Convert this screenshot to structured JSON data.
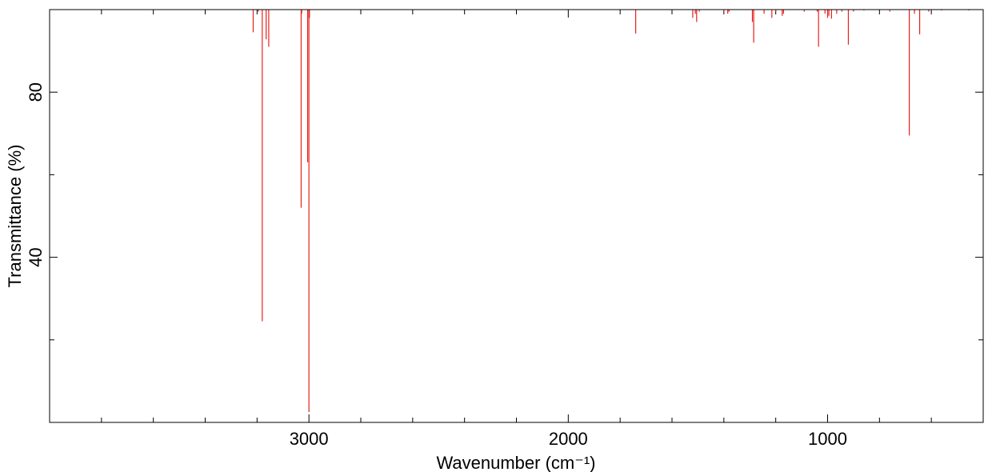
{
  "chart_data": {
    "type": "bar",
    "style": "stick-spectrum",
    "title": "",
    "xlabel": "Wavenumber (cm⁻¹)",
    "ylabel": "Transmittance (%)",
    "xlim": [
      4000,
      400
    ],
    "ylim": [
      0,
      100
    ],
    "x_reversed": true,
    "x_ticks": [
      3000,
      2000,
      1000
    ],
    "y_ticks": [
      40,
      80
    ],
    "x_minor_step": 200,
    "y_minor_step": 20,
    "grid": false,
    "legend": "none",
    "color": "#e8201c",
    "series": [
      {
        "x": [
          3215,
          3195,
          3180,
          3165,
          3155,
          3030,
          3028,
          3005,
          3000,
          2998,
          1740,
          1520,
          1510,
          1505,
          1495,
          1400,
          1385,
          1380,
          1290,
          1285,
          1245,
          1215,
          1200,
          1175,
          1170,
          1090,
          1040,
          1035,
          1010,
          1000,
          995,
          985,
          965,
          945,
          920,
          900,
          860,
          760,
          685,
          665,
          645,
          610,
          560,
          455
        ],
        "values": [
          94.5,
          99.5,
          24.5,
          92.8,
          91,
          52,
          99,
          63,
          2.5,
          98,
          94.2,
          98,
          99,
          97,
          99.5,
          99.5,
          99,
          99.5,
          97,
          92,
          99,
          98,
          99.5,
          98.5,
          99,
          99.5,
          99.5,
          91,
          99,
          98,
          98.5,
          97.8,
          99,
          99.5,
          91.5,
          99.5,
          99.8,
          99.5,
          69.5,
          99,
          94,
          99.5,
          99.8,
          99.8
        ]
      }
    ]
  }
}
